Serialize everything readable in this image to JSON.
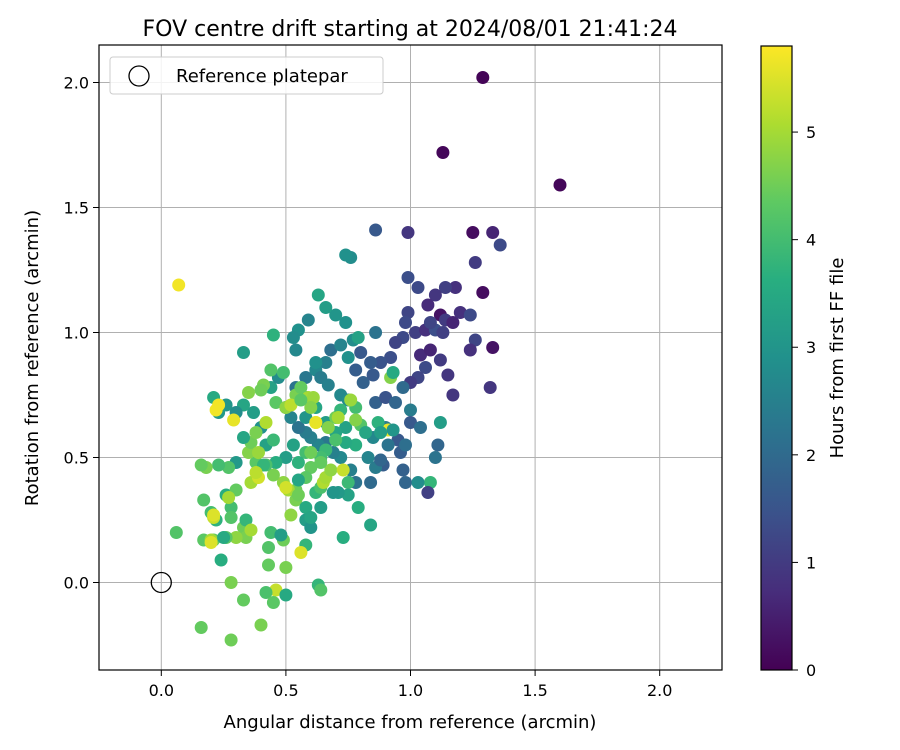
{
  "chart_data": {
    "type": "scatter",
    "title": "FOV centre drift starting at 2024/08/01 21:41:24",
    "xlabel": "Angular distance from reference (arcmin)",
    "ylabel": "Rotation from reference (arcmin)",
    "xlim": [
      -0.25,
      2.25
    ],
    "ylim": [
      -0.35,
      2.15
    ],
    "xticks": [
      0.0,
      0.5,
      1.0,
      1.5,
      2.0
    ],
    "xtick_labels": [
      "0.0",
      "0.5",
      "1.0",
      "1.5",
      "2.0"
    ],
    "yticks": [
      0.0,
      0.5,
      1.0,
      1.5,
      2.0
    ],
    "ytick_labels": [
      "0.0",
      "0.5",
      "1.0",
      "1.5",
      "2.0"
    ],
    "grid": true,
    "colormap": "viridis",
    "colorbar": {
      "label": "Hours from first FF file",
      "range": [
        0,
        5.8
      ],
      "ticks": [
        0,
        1,
        2,
        3,
        4,
        5
      ],
      "tick_labels": [
        "0",
        "1",
        "2",
        "3",
        "4",
        "5"
      ]
    },
    "legend": {
      "position": "upper-left",
      "entries": [
        {
          "label": "Reference platepar",
          "marker": "open-circle"
        }
      ]
    },
    "reference_point": {
      "x": 0.0,
      "y": 0.0
    },
    "points": [
      [
        1.29,
        2.02,
        0.05
      ],
      [
        1.13,
        1.72,
        0.1
      ],
      [
        1.6,
        1.59,
        0.1
      ],
      [
        1.25,
        1.4,
        0.2
      ],
      [
        1.33,
        1.4,
        0.6
      ],
      [
        1.36,
        1.35,
        1.3
      ],
      [
        1.29,
        1.16,
        0.2
      ],
      [
        1.26,
        1.28,
        1.0
      ],
      [
        1.18,
        1.18,
        0.8
      ],
      [
        1.14,
        1.18,
        1.1
      ],
      [
        1.1,
        1.15,
        0.9
      ],
      [
        1.12,
        1.07,
        0.3
      ],
      [
        1.07,
        1.11,
        0.7
      ],
      [
        1.03,
        1.18,
        1.3
      ],
      [
        0.99,
        1.22,
        1.4
      ],
      [
        0.99,
        1.08,
        1.2
      ],
      [
        0.98,
        1.04,
        1.3
      ],
      [
        1.02,
        1.0,
        1.1
      ],
      [
        1.06,
        1.01,
        0.8
      ],
      [
        1.1,
        1.01,
        1.4
      ],
      [
        1.13,
        1.0,
        1.1
      ],
      [
        1.08,
        1.04,
        1.2
      ],
      [
        1.14,
        1.05,
        1.0
      ],
      [
        1.17,
        1.04,
        0.6
      ],
      [
        1.2,
        1.08,
        0.8
      ],
      [
        1.24,
        1.07,
        1.3
      ],
      [
        1.26,
        0.97,
        1.2
      ],
      [
        1.24,
        0.93,
        0.8
      ],
      [
        1.33,
        0.94,
        0.3
      ],
      [
        1.32,
        0.78,
        0.9
      ],
      [
        0.99,
        1.4,
        0.9
      ],
      [
        0.86,
        1.41,
        1.6
      ],
      [
        1.04,
        0.91,
        0.7
      ],
      [
        1.08,
        0.93,
        0.6
      ],
      [
        1.12,
        0.89,
        1.0
      ],
      [
        1.15,
        0.83,
        0.9
      ],
      [
        1.17,
        0.75,
        0.9
      ],
      [
        1.06,
        0.86,
        1.3
      ],
      [
        1.03,
        0.82,
        1.2
      ],
      [
        1.0,
        0.8,
        1.0
      ],
      [
        0.97,
        0.98,
        1.3
      ],
      [
        0.94,
        0.96,
        1.2
      ],
      [
        0.92,
        0.9,
        1.4
      ],
      [
        0.88,
        0.88,
        1.5
      ],
      [
        0.84,
        0.88,
        1.7
      ],
      [
        0.8,
        0.92,
        1.6
      ],
      [
        0.78,
        0.85,
        1.7
      ],
      [
        0.81,
        0.8,
        1.8
      ],
      [
        0.85,
        0.83,
        1.6
      ],
      [
        0.86,
        0.72,
        1.8
      ],
      [
        0.9,
        0.74,
        1.5
      ],
      [
        0.94,
        0.72,
        1.9
      ],
      [
        0.97,
        0.78,
        2.0
      ],
      [
        1.0,
        0.69,
        2.4
      ],
      [
        1.0,
        0.64,
        1.6
      ],
      [
        1.04,
        0.62,
        2.1
      ],
      [
        1.1,
        0.5,
        2.2
      ],
      [
        1.11,
        0.55,
        1.9
      ],
      [
        1.12,
        0.64,
        3.2
      ],
      [
        1.08,
        0.4,
        3.8
      ],
      [
        1.07,
        0.36,
        1.1
      ],
      [
        0.98,
        0.4,
        1.9
      ],
      [
        1.03,
        0.4,
        2.8
      ],
      [
        0.97,
        0.45,
        1.8
      ],
      [
        0.96,
        0.52,
        1.7
      ],
      [
        0.95,
        0.57,
        1.6
      ],
      [
        0.98,
        0.55,
        2.1
      ],
      [
        0.91,
        0.55,
        2.2
      ],
      [
        0.9,
        0.62,
        2.4
      ],
      [
        0.89,
        0.47,
        1.7
      ],
      [
        0.85,
        0.58,
        2.7
      ],
      [
        0.83,
        0.5,
        2.6
      ],
      [
        0.84,
        0.4,
        2.0
      ],
      [
        0.84,
        0.23,
        3.4
      ],
      [
        0.79,
        0.3,
        3.6
      ],
      [
        0.78,
        0.4,
        2.2
      ],
      [
        0.76,
        0.45,
        2.5
      ],
      [
        0.72,
        0.5,
        2.7
      ],
      [
        0.69,
        0.52,
        2.5
      ],
      [
        0.66,
        0.56,
        2.3
      ],
      [
        0.63,
        0.55,
        2.6
      ],
      [
        0.6,
        0.58,
        2.5
      ],
      [
        0.58,
        0.6,
        2.4
      ],
      [
        0.55,
        0.62,
        2.2
      ],
      [
        0.52,
        0.66,
        2.6
      ],
      [
        0.5,
        0.7,
        2.4
      ],
      [
        0.54,
        0.78,
        2.2
      ],
      [
        0.58,
        0.82,
        2.3
      ],
      [
        0.62,
        0.85,
        2.7
      ],
      [
        0.66,
        0.88,
        2.5
      ],
      [
        0.68,
        0.93,
        2.1
      ],
      [
        0.72,
        0.95,
        2.6
      ],
      [
        0.75,
        0.9,
        2.9
      ],
      [
        0.77,
        0.97,
        2.8
      ],
      [
        0.79,
        0.98,
        3.3
      ],
      [
        0.74,
        1.04,
        2.9
      ],
      [
        0.7,
        1.07,
        3.0
      ],
      [
        0.66,
        1.1,
        3.2
      ],
      [
        0.63,
        1.15,
        3.4
      ],
      [
        0.59,
        1.05,
        2.6
      ],
      [
        0.55,
        1.01,
        2.9
      ],
      [
        0.53,
        0.98,
        2.8
      ],
      [
        0.54,
        0.93,
        2.7
      ],
      [
        0.62,
        0.88,
        2.9
      ],
      [
        0.64,
        0.82,
        2.4
      ],
      [
        0.67,
        0.79,
        2.5
      ],
      [
        0.72,
        0.75,
        2.7
      ],
      [
        0.75,
        0.73,
        2.8
      ],
      [
        0.76,
        1.3,
        2.8
      ],
      [
        0.74,
        1.31,
        2.9
      ],
      [
        0.74,
        0.62,
        3.3
      ],
      [
        0.7,
        0.6,
        3.4
      ],
      [
        0.66,
        0.64,
        3.2
      ],
      [
        0.62,
        0.7,
        3.4
      ],
      [
        0.58,
        0.74,
        3.6
      ],
      [
        0.58,
        0.66,
        3.0
      ],
      [
        0.53,
        0.55,
        3.3
      ],
      [
        0.5,
        0.5,
        3.2
      ],
      [
        0.46,
        0.48,
        3.6
      ],
      [
        0.42,
        0.55,
        3.3
      ],
      [
        0.4,
        0.62,
        2.9
      ],
      [
        0.37,
        0.68,
        3.2
      ],
      [
        0.33,
        0.71,
        3.4
      ],
      [
        0.3,
        0.68,
        2.8
      ],
      [
        0.26,
        0.71,
        3.0
      ],
      [
        0.23,
        0.68,
        3.1
      ],
      [
        0.21,
        0.74,
        3.5
      ],
      [
        0.33,
        0.92,
        3.2
      ],
      [
        0.45,
        0.99,
        3.7
      ],
      [
        0.44,
        0.78,
        3.3
      ],
      [
        0.47,
        0.82,
        2.8
      ],
      [
        0.49,
        0.84,
        4.0
      ],
      [
        0.44,
        0.85,
        4.2
      ],
      [
        0.41,
        0.79,
        4.6
      ],
      [
        0.4,
        0.77,
        4.5
      ],
      [
        0.35,
        0.76,
        4.7
      ],
      [
        0.46,
        0.72,
        4.3
      ],
      [
        0.5,
        0.7,
        4.8
      ],
      [
        0.54,
        0.75,
        4.6
      ],
      [
        0.56,
        0.78,
        4.4
      ],
      [
        0.59,
        0.74,
        5.0
      ],
      [
        0.61,
        0.74,
        4.9
      ],
      [
        0.6,
        0.7,
        4.7
      ],
      [
        0.62,
        0.64,
        5.3
      ],
      [
        0.67,
        0.62,
        4.7
      ],
      [
        0.7,
        0.66,
        4.5
      ],
      [
        0.72,
        0.69,
        3.8
      ],
      [
        0.78,
        0.7,
        4.0
      ],
      [
        0.8,
        0.63,
        4.2
      ],
      [
        0.78,
        0.55,
        3.6
      ],
      [
        0.74,
        0.56,
        3.5
      ],
      [
        0.7,
        0.57,
        4.1
      ],
      [
        0.66,
        0.53,
        3.9
      ],
      [
        0.64,
        0.5,
        4.0
      ],
      [
        0.6,
        0.46,
        4.4
      ],
      [
        0.58,
        0.42,
        4.3
      ],
      [
        0.54,
        0.37,
        4.5
      ],
      [
        0.51,
        0.37,
        5.0
      ],
      [
        0.49,
        0.4,
        4.8
      ],
      [
        0.45,
        0.43,
        4.6
      ],
      [
        0.42,
        0.47,
        4.1
      ],
      [
        0.38,
        0.48,
        4.3
      ],
      [
        0.35,
        0.52,
        4.7
      ],
      [
        0.36,
        0.56,
        4.5
      ],
      [
        0.38,
        0.6,
        4.6
      ],
      [
        0.33,
        0.58,
        3.4
      ],
      [
        0.3,
        0.48,
        3.1
      ],
      [
        0.27,
        0.46,
        4.2
      ],
      [
        0.23,
        0.47,
        4.0
      ],
      [
        0.18,
        0.46,
        4.6
      ],
      [
        0.16,
        0.47,
        4.4
      ],
      [
        0.17,
        0.33,
        4.2
      ],
      [
        0.2,
        0.28,
        4.0
      ],
      [
        0.22,
        0.25,
        3.7
      ],
      [
        0.26,
        0.35,
        3.6
      ],
      [
        0.28,
        0.3,
        4.0
      ],
      [
        0.3,
        0.37,
        4.4
      ],
      [
        0.28,
        0.26,
        4.2
      ],
      [
        0.33,
        0.22,
        4.5
      ],
      [
        0.34,
        0.18,
        4.6
      ],
      [
        0.3,
        0.18,
        4.8
      ],
      [
        0.26,
        0.18,
        4.3
      ],
      [
        0.21,
        0.17,
        4.4
      ],
      [
        0.17,
        0.17,
        4.3
      ],
      [
        0.2,
        0.17,
        5.0
      ],
      [
        0.2,
        0.16,
        5.5
      ],
      [
        0.24,
        0.09,
        3.6
      ],
      [
        0.25,
        0.18,
        3.5
      ],
      [
        0.34,
        0.25,
        3.8
      ],
      [
        0.36,
        0.4,
        5.0
      ],
      [
        0.41,
        0.47,
        3.8
      ],
      [
        0.44,
        0.2,
        4.0
      ],
      [
        0.43,
        0.14,
        4.2
      ],
      [
        0.43,
        0.07,
        4.4
      ],
      [
        0.49,
        0.17,
        4.5
      ],
      [
        0.5,
        0.06,
        4.6
      ],
      [
        0.46,
        -0.03,
        5.3
      ],
      [
        0.42,
        -0.04,
        4.1
      ],
      [
        0.45,
        -0.08,
        4.3
      ],
      [
        0.5,
        -0.05,
        3.5
      ],
      [
        0.33,
        -0.07,
        4.4
      ],
      [
        0.28,
        0.0,
        4.6
      ],
      [
        0.27,
        0.34,
        5.0
      ],
      [
        0.21,
        0.26,
        5.3
      ],
      [
        0.16,
        -0.18,
        4.4
      ],
      [
        0.28,
        -0.23,
        4.5
      ],
      [
        0.4,
        -0.17,
        4.6
      ],
      [
        0.63,
        -0.01,
        3.8
      ],
      [
        0.64,
        -0.03,
        4.2
      ],
      [
        0.52,
        0.27,
        4.8
      ],
      [
        0.54,
        0.33,
        4.6
      ],
      [
        0.55,
        0.35,
        4.5
      ],
      [
        0.58,
        0.3,
        3.5
      ],
      [
        0.58,
        0.25,
        3.2
      ],
      [
        0.6,
        0.22,
        3.0
      ],
      [
        0.6,
        0.26,
        3.4
      ],
      [
        0.58,
        0.15,
        3.8
      ],
      [
        0.56,
        0.12,
        5.5
      ],
      [
        0.64,
        0.3,
        3.2
      ],
      [
        0.62,
        0.36,
        3.8
      ],
      [
        0.64,
        0.38,
        4.1
      ],
      [
        0.65,
        0.4,
        5.1
      ],
      [
        0.66,
        0.42,
        5.0
      ],
      [
        0.68,
        0.45,
        4.8
      ],
      [
        0.64,
        0.48,
        4.4
      ],
      [
        0.58,
        0.52,
        4.0
      ],
      [
        0.55,
        0.48,
        3.7
      ],
      [
        0.55,
        0.41,
        3.4
      ],
      [
        0.5,
        0.38,
        5.4
      ],
      [
        0.52,
        0.71,
        5.2
      ],
      [
        0.56,
        0.73,
        4.3
      ],
      [
        0.62,
        0.64,
        5.6
      ],
      [
        0.73,
        0.45,
        5.3
      ],
      [
        0.75,
        0.4,
        3.9
      ],
      [
        0.73,
        0.18,
        3.6
      ],
      [
        0.75,
        0.35,
        3.3
      ],
      [
        0.71,
        0.36,
        3.1
      ],
      [
        0.69,
        0.36,
        3.0
      ],
      [
        0.86,
        1.0,
        2.2
      ],
      [
        0.92,
        0.82,
        4.7
      ],
      [
        0.93,
        0.84,
        3.5
      ],
      [
        0.91,
        0.61,
        5.6
      ],
      [
        0.93,
        0.61,
        3.0
      ],
      [
        0.87,
        0.64,
        3.7
      ],
      [
        0.88,
        0.6,
        3.2
      ],
      [
        0.82,
        0.6,
        3.4
      ],
      [
        0.86,
        0.46,
        2.4
      ],
      [
        0.88,
        0.49,
        1.9
      ],
      [
        0.29,
        0.65,
        5.6
      ],
      [
        0.39,
        0.42,
        5.4
      ],
      [
        0.06,
        0.2,
        4.2
      ],
      [
        0.07,
        1.19,
        5.7
      ],
      [
        0.22,
        0.69,
        5.7
      ],
      [
        0.23,
        0.71,
        5.7
      ],
      [
        0.21,
        0.27,
        5.5
      ],
      [
        0.39,
        0.52,
        4.9
      ],
      [
        0.38,
        0.44,
        5.2
      ],
      [
        0.71,
        0.66,
        5.0
      ],
      [
        0.6,
        0.52,
        4.5
      ],
      [
        0.48,
        0.19,
        3.2
      ],
      [
        0.36,
        0.21,
        5.0
      ],
      [
        0.45,
        0.57,
        3.9
      ],
      [
        0.42,
        0.64,
        5.1
      ],
      [
        0.76,
        0.73,
        4.9
      ],
      [
        0.78,
        0.65,
        4.7
      ]
    ]
  }
}
